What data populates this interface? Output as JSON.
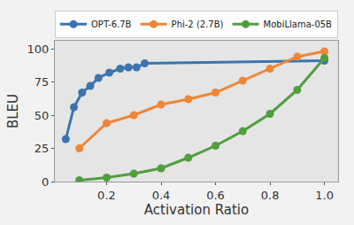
{
  "chart_data": {
    "type": "line",
    "x_label": "Activation Ratio",
    "y_label": "BLEU",
    "series": [
      {
        "name": "OPT-6.7B",
        "color": "#3b75af",
        "marker": "circle",
        "x": [
          0.05,
          0.08,
          0.11,
          0.14,
          0.17,
          0.21,
          0.25,
          0.28,
          0.31,
          0.34,
          1.0
        ],
        "values": [
          32,
          56,
          67,
          72,
          78,
          82,
          85,
          86,
          86,
          89,
          91
        ]
      },
      {
        "name": "Phi-2 (2.7B)",
        "color": "#ef8636",
        "marker": "circle",
        "x": [
          0.1,
          0.2,
          0.3,
          0.4,
          0.5,
          0.6,
          0.7,
          0.8,
          0.9,
          1.0
        ],
        "values": [
          25,
          44,
          50,
          58,
          62,
          67,
          76,
          85,
          94,
          98
        ]
      },
      {
        "name": "MobiLlama-05B",
        "color": "#519e3e",
        "marker": "circle",
        "x": [
          0.1,
          0.2,
          0.3,
          0.4,
          0.5,
          0.6,
          0.7,
          0.8,
          0.9,
          1.0
        ],
        "values": [
          1,
          3,
          6,
          10,
          18,
          27,
          38,
          51,
          69,
          93
        ]
      }
    ],
    "xlim": [
      0.01,
      1.05
    ],
    "ylim": [
      0,
      106
    ],
    "xticks": [
      0.2,
      0.4,
      0.6,
      0.8,
      {
        "value": 1.0,
        "label": "1.0"
      }
    ],
    "yticks": [
      0,
      25,
      50,
      75,
      100
    ],
    "grid": false,
    "legend": "top"
  }
}
